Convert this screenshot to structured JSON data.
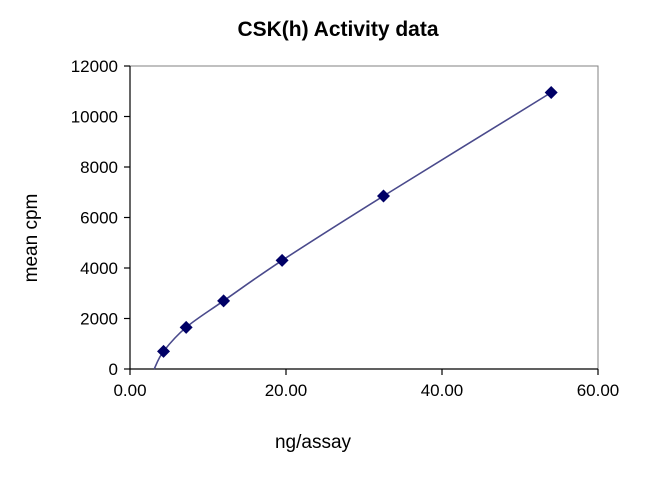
{
  "chart_data": {
    "type": "scatter",
    "title": "CSK(h) Activity data",
    "xlabel": "ng/assay",
    "ylabel": "mean cpm",
    "xlim": [
      0,
      60
    ],
    "ylim": [
      0,
      12000
    ],
    "x_ticks": [
      0,
      20,
      40,
      60
    ],
    "x_tick_labels": [
      "0.00",
      "20.00",
      "40.00",
      "60.00"
    ],
    "y_ticks": [
      0,
      2000,
      4000,
      6000,
      8000,
      10000,
      12000
    ],
    "y_tick_labels": [
      "0",
      "2000",
      "4000",
      "6000",
      "8000",
      "10000",
      "12000"
    ],
    "grid": false,
    "legend": "none",
    "series": [
      {
        "marker": "diamond",
        "color": "#000066",
        "x": [
          4.3,
          7.2,
          12.0,
          19.5,
          32.5,
          54.0
        ],
        "y": [
          700,
          1650,
          2700,
          4300,
          6850,
          10950
        ]
      }
    ],
    "trendline": {
      "type": "curve",
      "color": "#4a4a8c",
      "x": [
        3.1,
        4.3,
        7.2,
        12.0,
        19.5,
        32.5,
        54.0
      ],
      "y": [
        0,
        700,
        1650,
        2700,
        4300,
        6850,
        10950
      ]
    }
  }
}
